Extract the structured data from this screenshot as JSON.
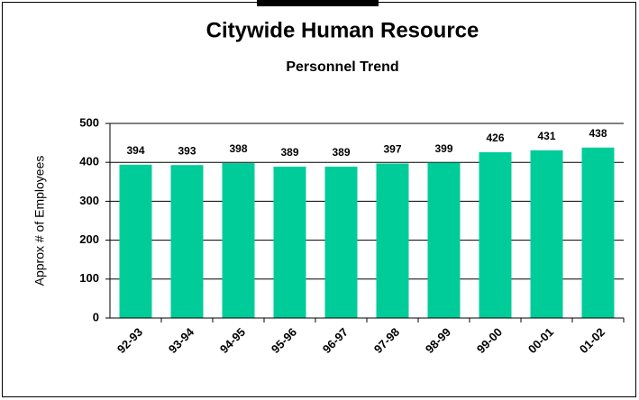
{
  "chart_data": {
    "type": "bar",
    "title": "Citywide Human Resource",
    "subtitle": "Personnel Trend",
    "y_label": "Approx # of Employees",
    "categories": [
      "92-93",
      "93-94",
      "94-95",
      "95-96",
      "96-97",
      "97-98",
      "98-99",
      "99-00",
      "00-01",
      "01-02"
    ],
    "values": [
      394,
      393,
      398,
      389,
      389,
      397,
      399,
      426,
      431,
      438
    ],
    "color": "#00cc99",
    "ylim": [
      0,
      500
    ],
    "yticks": [
      0,
      100,
      200,
      300,
      400,
      500
    ],
    "grid": true
  }
}
